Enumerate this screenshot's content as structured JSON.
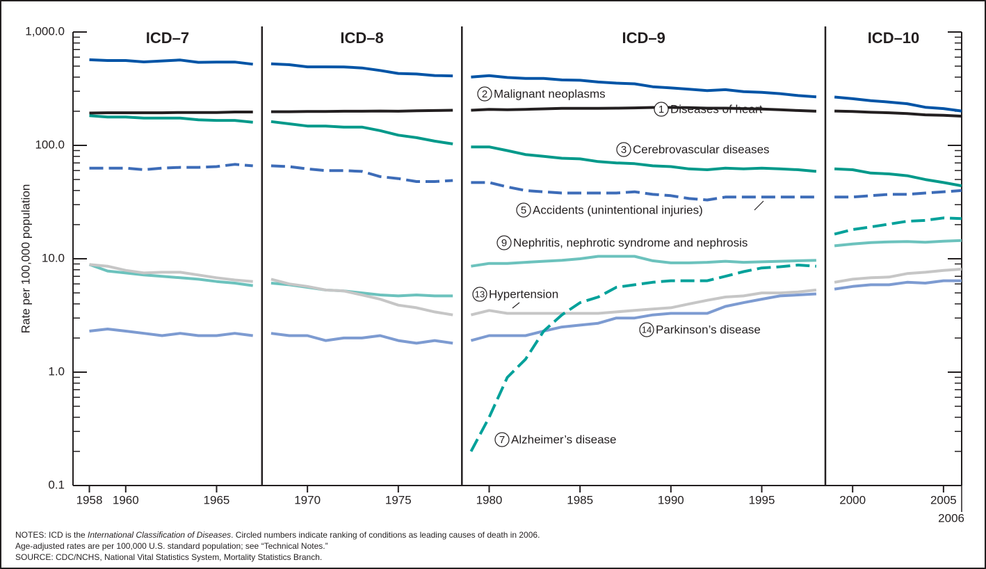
{
  "chart_data": {
    "type": "line",
    "y_label": "Rate per 100,000 population",
    "log_y": true,
    "eras": [
      {
        "label": "ICD–7",
        "first_year": 1958,
        "last_year": 1967
      },
      {
        "label": "ICD–8",
        "first_year": 1968,
        "last_year": 1978
      },
      {
        "label": "ICD–9",
        "first_year": 1979,
        "last_year": 1998
      },
      {
        "label": "ICD–10",
        "first_year": 1999,
        "last_year": 2006
      }
    ],
    "x": [
      1958,
      1959,
      1960,
      1961,
      1962,
      1963,
      1964,
      1965,
      1966,
      1967,
      1968,
      1969,
      1970,
      1971,
      1972,
      1973,
      1974,
      1975,
      1976,
      1977,
      1978,
      1979,
      1980,
      1981,
      1982,
      1983,
      1984,
      1985,
      1986,
      1987,
      1988,
      1989,
      1990,
      1991,
      1992,
      1993,
      1994,
      1995,
      1996,
      1997,
      1998,
      1999,
      2000,
      2001,
      2002,
      2003,
      2004,
      2005,
      2006
    ],
    "xlim": [
      1957.1,
      2006
    ],
    "xticks": [
      1958,
      1960,
      1965,
      1970,
      1975,
      1980,
      1985,
      1990,
      1995,
      2000,
      2005,
      2006
    ],
    "ylim": [
      0.1,
      1000
    ],
    "yticks": [
      0.1,
      {
        "value": 1,
        "label": "1.0"
      },
      {
        "value": 10,
        "label": "10.0"
      },
      {
        "value": 100,
        "label": "100.0"
      },
      {
        "value": 1000,
        "label": "1,000.0"
      }
    ],
    "series": [
      {
        "name": "Diseases of heart",
        "rank": 1,
        "color": "#0054a6",
        "dashed": false,
        "values": [
          569,
          560,
          560,
          545,
          556,
          566,
          540,
          543,
          543,
          520,
          524,
          515,
          493,
          493,
          492,
          482,
          458,
          431,
          426,
          413,
          410,
          401,
          412,
          397,
          389,
          389,
          378,
          375,
          362,
          354,
          349,
          329,
          321,
          313,
          304,
          310,
          298,
          294,
          286,
          275,
          268,
          267,
          258,
          248,
          241,
          233,
          217,
          211,
          201
        ]
      },
      {
        "name": "Malignant neoplasms",
        "rank": 2,
        "color": "#231f20",
        "dashed": false,
        "values": [
          193,
          194,
          194,
          194,
          194,
          195,
          195,
          195,
          197,
          197,
          198,
          198,
          199,
          199,
          200,
          200,
          201,
          200,
          202,
          203,
          204,
          204,
          208,
          206,
          208,
          210,
          212,
          212,
          212,
          213,
          214,
          216,
          216,
          215,
          213,
          213,
          211,
          209,
          206,
          203,
          200,
          201,
          199,
          196,
          194,
          191,
          186,
          184,
          181
        ]
      },
      {
        "name": "Cerebrovascular diseases",
        "rank": 3,
        "color": "#00998a",
        "dashed": false,
        "values": [
          183,
          178,
          178,
          174,
          174,
          174,
          168,
          166,
          166,
          160,
          162,
          155,
          148,
          148,
          145,
          145,
          135,
          123,
          117,
          109,
          103,
          97,
          97,
          90,
          83,
          80,
          77,
          76,
          72,
          70,
          69,
          66,
          65,
          62,
          61,
          63,
          62,
          63,
          62,
          61,
          59,
          62,
          61,
          57,
          56,
          54,
          50,
          47,
          44
        ]
      },
      {
        "name": "Accidents (unintentional injuries)",
        "rank": 5,
        "color": "#3d6cb8",
        "dashed": true,
        "values": [
          63,
          63,
          63,
          61,
          63,
          64,
          64,
          65,
          68,
          66,
          66,
          65,
          62,
          60,
          60,
          59,
          53,
          51,
          48,
          48,
          49,
          47,
          47,
          43,
          40,
          39,
          38,
          38,
          38,
          38,
          39,
          37,
          36,
          34,
          33,
          35,
          35,
          35,
          35,
          35,
          35,
          35,
          35,
          36,
          37,
          37,
          38,
          39,
          40
        ]
      },
      {
        "name": "Nephritis, nephrotic syndrome and nephrosis",
        "rank": 9,
        "color": "#6cc2bd",
        "dashed": false,
        "values": [
          8.9,
          7.8,
          7.5,
          7.2,
          7.0,
          6.8,
          6.6,
          6.3,
          6.1,
          5.8,
          6.1,
          5.9,
          5.6,
          5.3,
          5.2,
          5.0,
          4.8,
          4.7,
          4.8,
          4.7,
          4.7,
          8.6,
          9.1,
          9.1,
          9.3,
          9.5,
          9.7,
          10.0,
          10.5,
          10.5,
          10.5,
          9.6,
          9.2,
          9.2,
          9.3,
          9.5,
          9.3,
          9.4,
          9.5,
          9.6,
          9.7,
          13.0,
          13.5,
          13.9,
          14.1,
          14.2,
          14.0,
          14.3,
          14.5
        ]
      },
      {
        "name": "Hypertension",
        "rank": 13,
        "color": "#c6c6c6",
        "dashed": false,
        "values": [
          8.9,
          8.6,
          7.9,
          7.5,
          7.6,
          7.6,
          7.2,
          6.8,
          6.5,
          6.3,
          6.6,
          6.0,
          5.7,
          5.3,
          5.2,
          4.8,
          4.4,
          3.9,
          3.7,
          3.4,
          3.2,
          3.2,
          3.5,
          3.3,
          3.3,
          3.3,
          3.3,
          3.3,
          3.3,
          3.4,
          3.5,
          3.6,
          3.7,
          4.0,
          4.3,
          4.6,
          4.7,
          5.0,
          5.0,
          5.1,
          5.3,
          6.2,
          6.6,
          6.8,
          6.9,
          7.4,
          7.6,
          7.9,
          8.1
        ]
      },
      {
        "name": "Parkinson’s disease",
        "rank": 14,
        "color": "#7d9bd1",
        "dashed": false,
        "values": [
          2.3,
          2.4,
          2.3,
          2.2,
          2.1,
          2.2,
          2.1,
          2.1,
          2.2,
          2.1,
          2.2,
          2.1,
          2.1,
          1.9,
          2.0,
          2.0,
          2.1,
          1.9,
          1.8,
          1.9,
          1.8,
          1.9,
          2.1,
          2.1,
          2.1,
          2.3,
          2.5,
          2.6,
          2.7,
          3.0,
          3.0,
          3.2,
          3.3,
          3.3,
          3.3,
          3.8,
          4.1,
          4.4,
          4.7,
          4.8,
          4.9,
          5.4,
          5.7,
          5.9,
          5.9,
          6.2,
          6.1,
          6.4,
          6.4
        ]
      },
      {
        "name": "Alzheimer’s disease",
        "rank": 7,
        "color": "#00a19a",
        "dashed": true,
        "values": [
          null,
          null,
          null,
          null,
          null,
          null,
          null,
          null,
          null,
          null,
          null,
          null,
          null,
          null,
          null,
          null,
          null,
          null,
          null,
          null,
          null,
          0.2,
          0.4,
          0.9,
          1.3,
          2.3,
          3.2,
          4.1,
          4.6,
          5.6,
          5.9,
          6.2,
          6.4,
          6.4,
          6.4,
          7.0,
          7.7,
          8.3,
          8.5,
          8.8,
          8.6,
          16.5,
          18.1,
          19.1,
          20.2,
          21.4,
          21.8,
          22.9,
          22.6
        ]
      }
    ],
    "notes": [
      "NOTES: ICD is the ",
      "International Classification of Diseases",
      ". Circled numbers indicate ranking of conditions as leading causes of death in 2006.",
      "Age-adjusted rates are per 100,000 U.S. standard population; see “Technical Notes.”",
      "SOURCE: CDC/NCHS, National Vital Statistics System, Mortality Statistics Branch."
    ]
  }
}
